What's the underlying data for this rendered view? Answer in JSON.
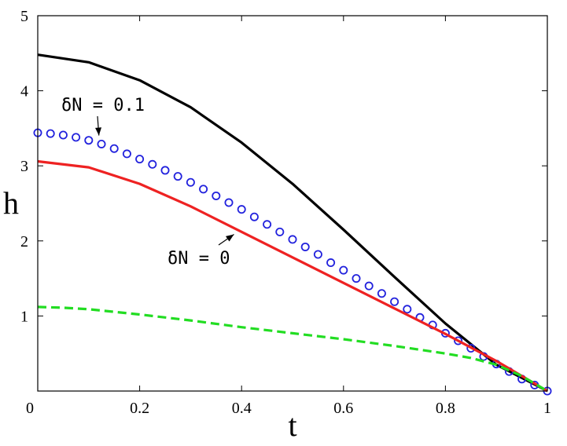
{
  "chart_data": {
    "type": "line",
    "title": "",
    "xlabel": "t",
    "ylabel": "h",
    "xlim": [
      0,
      1
    ],
    "ylim": [
      0,
      5
    ],
    "xticks": [
      "0",
      "0.2",
      "0.4",
      "0.6",
      "0.8",
      "1"
    ],
    "yticks": [
      "1",
      "2",
      "3",
      "4",
      "5"
    ],
    "grid": false,
    "legend": "none",
    "series": [
      {
        "style": "solid",
        "color": "#000000",
        "x": [
          0,
          0.1,
          0.2,
          0.3,
          0.4,
          0.5,
          0.6,
          0.7,
          0.8,
          0.9,
          1.0
        ],
        "y": [
          4.48,
          4.38,
          4.14,
          3.78,
          3.31,
          2.76,
          2.15,
          1.52,
          0.9,
          0.35,
          0.0
        ]
      },
      {
        "style": "circles",
        "color": "#2222dd",
        "x": [
          0,
          0.025,
          0.05,
          0.075,
          0.1,
          0.125,
          0.15,
          0.175,
          0.2,
          0.225,
          0.25,
          0.275,
          0.3,
          0.325,
          0.35,
          0.375,
          0.4,
          0.425,
          0.45,
          0.475,
          0.5,
          0.525,
          0.55,
          0.575,
          0.6,
          0.625,
          0.65,
          0.675,
          0.7,
          0.725,
          0.75,
          0.775,
          0.8,
          0.825,
          0.85,
          0.875,
          0.9,
          0.925,
          0.95,
          0.975,
          1.0
        ],
        "y": [
          3.44,
          3.43,
          3.41,
          3.38,
          3.34,
          3.29,
          3.23,
          3.16,
          3.09,
          3.02,
          2.94,
          2.86,
          2.78,
          2.69,
          2.6,
          2.51,
          2.42,
          2.32,
          2.22,
          2.12,
          2.02,
          1.92,
          1.82,
          1.71,
          1.61,
          1.5,
          1.4,
          1.3,
          1.19,
          1.09,
          0.98,
          0.88,
          0.77,
          0.67,
          0.57,
          0.46,
          0.36,
          0.26,
          0.16,
          0.08,
          0.0
        ]
      },
      {
        "style": "solid",
        "color": "#ee2222",
        "x": [
          0,
          0.1,
          0.2,
          0.3,
          0.4,
          0.5,
          0.6,
          0.7,
          0.8,
          0.9,
          1.0
        ],
        "y": [
          3.06,
          2.98,
          2.76,
          2.46,
          2.12,
          1.78,
          1.44,
          1.1,
          0.76,
          0.4,
          0.0
        ]
      },
      {
        "style": "dashed",
        "color": "#22dd22",
        "x": [
          0,
          0.05,
          0.1,
          0.2,
          0.3,
          0.4,
          0.5,
          0.6,
          0.7,
          0.8,
          0.85,
          0.9,
          0.95,
          1.0
        ],
        "y": [
          1.12,
          1.11,
          1.09,
          1.02,
          0.94,
          0.85,
          0.77,
          0.69,
          0.6,
          0.5,
          0.44,
          0.35,
          0.2,
          0.0
        ]
      }
    ],
    "annotations": [
      {
        "text": "δN = 0.1",
        "target_series": 1,
        "target_x": 0.12
      },
      {
        "text": "δN = 0",
        "target_series": 2,
        "target_x": 0.385
      }
    ]
  }
}
